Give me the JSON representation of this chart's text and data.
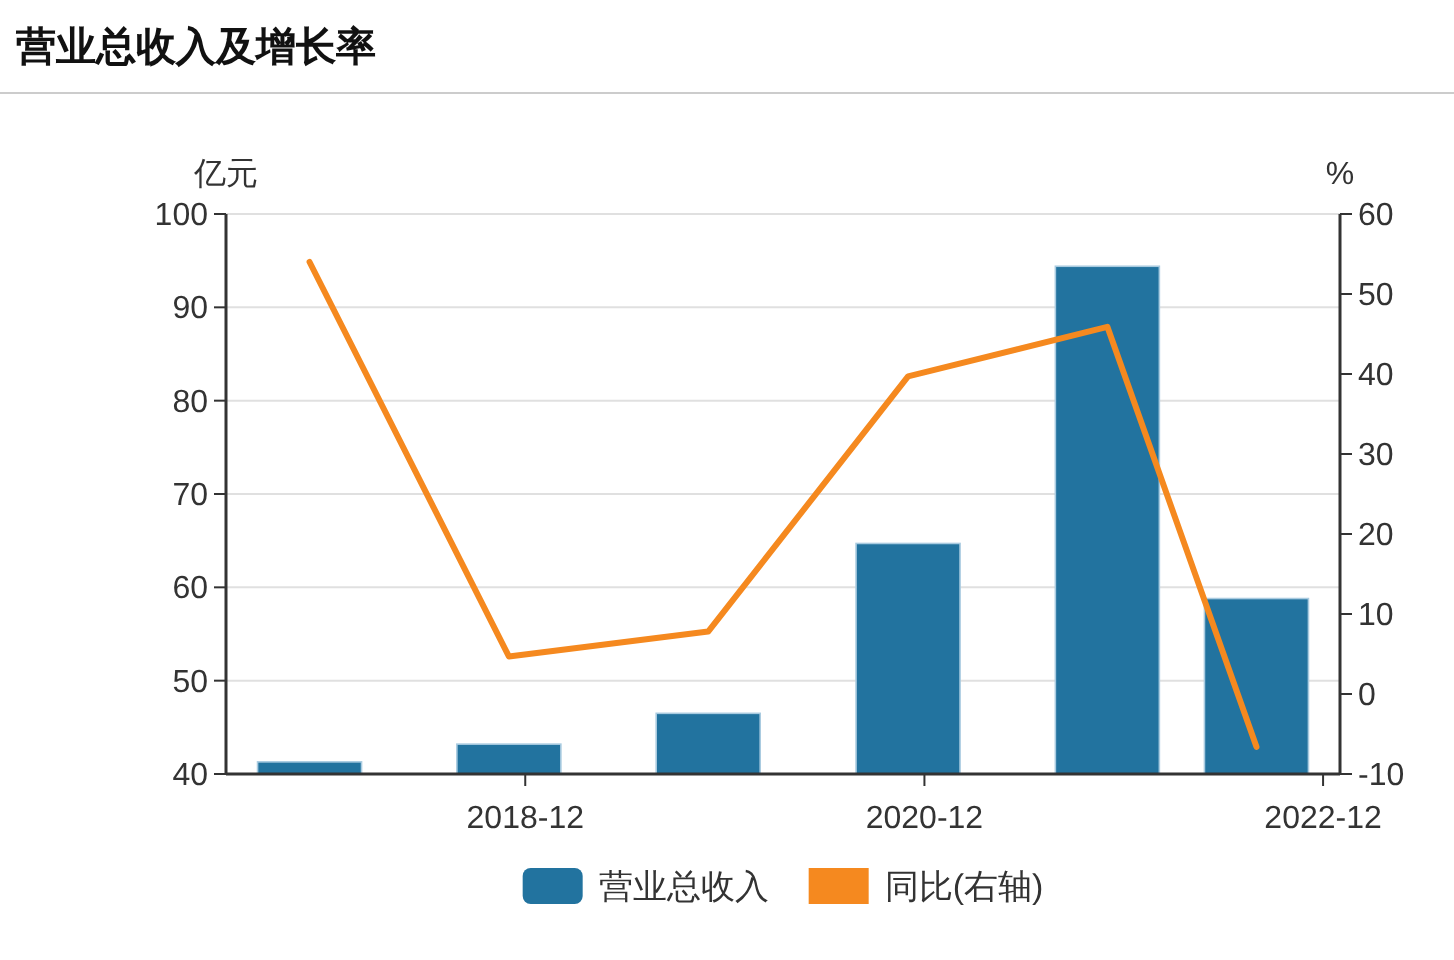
{
  "chart_data": {
    "type": "bar",
    "title": "营业总收入及增长率",
    "ylabel": "亿元",
    "y2label": "%",
    "x": [
      "2017-11",
      "2018-11",
      "2019-11",
      "2020-11",
      "2021-11",
      "2022-08"
    ],
    "series": [
      {
        "name": "营业总收入",
        "color": "#22739f",
        "values": [
          41.3,
          43.2,
          46.5,
          64.7,
          94.4,
          58.8
        ]
      },
      {
        "name": "同比(右轴)",
        "type": "line",
        "axis": "y2",
        "color": "#f5891f",
        "values": [
          54.0,
          4.7,
          7.8,
          39.7,
          45.9,
          -6.6
        ]
      }
    ],
    "xlim": [
      "2017-06",
      "2023-01"
    ],
    "xticks": [
      "2018-12",
      "2020-12",
      "2022-12"
    ],
    "ylim": [
      40,
      100
    ],
    "yticks": [
      40,
      50,
      60,
      70,
      80,
      90,
      100
    ],
    "y2lim": [
      -10,
      60
    ],
    "y2ticks": [
      -10,
      0,
      10,
      20,
      30,
      40,
      50,
      60
    ],
    "grid": "y",
    "legend": "bottom"
  }
}
